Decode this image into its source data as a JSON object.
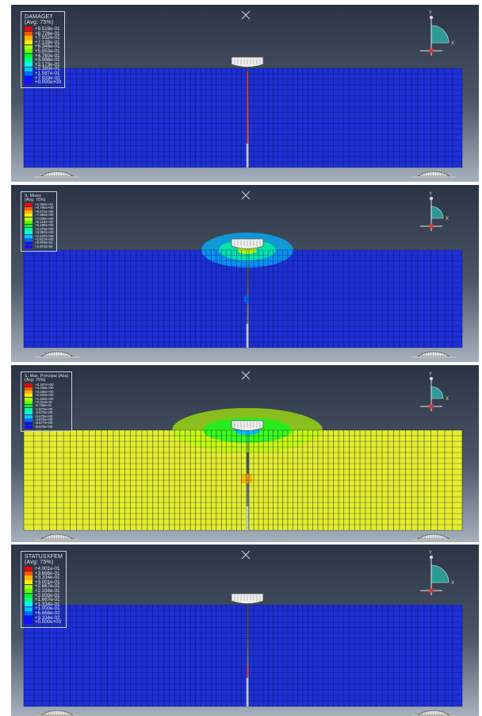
{
  "palette": [
    "#ff0000",
    "#ff5a00",
    "#ffb400",
    "#fff000",
    "#b4ff00",
    "#5aff00",
    "#00ff1e",
    "#00ff96",
    "#00ffe6",
    "#00c8ff",
    "#006eff",
    "#0014ff",
    "#1a0cff"
  ],
  "colors": {
    "mesh_blue": "#1d2fd6",
    "mesh_yellow": "#e4ee2a",
    "mesh_line": "#0c1350",
    "support_fill": "#eeeeee",
    "triad_fill": "#2e9a95",
    "crack_red": "#ff2a2a"
  },
  "panels": [
    {
      "legend_title": [
        "DAMAGET",
        "(Avg: 75%)"
      ],
      "legend_values": [
        "+9.519e-01",
        "+8.726e-01",
        "+7.932e-01",
        "+7.139e-01",
        "+6.346e-01",
        "+5.553e-01",
        "+4.760e-01",
        "+3.966e-01",
        "+3.173e-01",
        "+2.380e-01",
        "+1.587e-01",
        "+7.933e-02",
        "+0.000e+00"
      ],
      "field": "damage",
      "triad_labels": {
        "x": "X",
        "y": "Y"
      }
    },
    {
      "legend_title": [
        "S, Mises",
        "(Avg: 75%)"
      ],
      "legend_values": [
        "+1.305e+01",
        "+9.795e+00",
        "+8.875e+00",
        "+7.956e+00",
        "+7.036e+00",
        "+6.116e+00",
        "+5.196e+00",
        "+4.276e+00",
        "+3.357e+00",
        "+2.437e+00",
        "+1.517e+00",
        "+5.970e-01",
        "+1.974e-04"
      ],
      "field": "mises",
      "triad_labels": {
        "x": "X",
        "y": "Y"
      }
    },
    {
      "legend_title": [
        "S, Max. Principal (Abs)",
        "(Avg: 75%)"
      ],
      "legend_values": [
        "+5.197e+00",
        "+4.336e+00",
        "+3.335e+00",
        "+2.333e+00",
        "+1.332e+00",
        "+3.310e-01",
        "-6.705e-01",
        "-1.672e+00",
        "-2.673e+00",
        "-3.675e+00",
        "-4.676e+00",
        "-5.677e+00",
        "-6.679e+00"
      ],
      "field": "principal",
      "triad_labels": {
        "x": "X",
        "y": "Y"
      }
    },
    {
      "legend_title": [
        "STATUSXFEM",
        "(Avg: 75%)"
      ],
      "legend_values": [
        "+4.001e-01",
        "+3.668e-01",
        "+3.334e-01",
        "+3.001e-01",
        "+2.667e-01",
        "+2.334e-01",
        "+2.000e-01",
        "+1.667e-01",
        "+1.334e-01",
        "+1.000e-01",
        "+6.668e-02",
        "+3.334e-02",
        "+0.000e+00"
      ],
      "field": "status",
      "triad_labels": {
        "x": "X",
        "y": "Y"
      }
    }
  ]
}
